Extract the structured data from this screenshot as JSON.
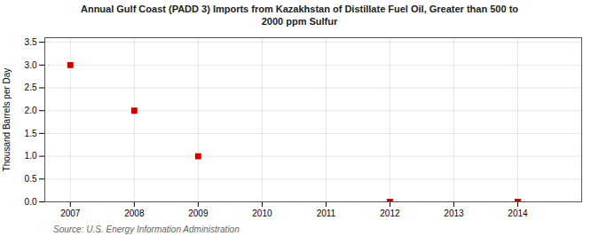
{
  "chart_data": {
    "type": "scatter",
    "title": "Annual Gulf Coast (PADD 3) Imports from Kazakhstan of Distillate Fuel Oil, Greater than 500 to\n2000 ppm Sulfur",
    "ylabel": "Thousand Barrels per Day",
    "source": "Source: U.S. Energy Information Administration",
    "x": [
      2007,
      2008,
      2009,
      2012,
      2014
    ],
    "values": [
      3.0,
      2.0,
      1.0,
      0.0,
      0.0
    ],
    "color": "#cc0000",
    "marker": "square",
    "xlim": [
      2006.6,
      2015.0
    ],
    "ylim": [
      0.0,
      3.6
    ],
    "xticks": [
      2007,
      2008,
      2009,
      2010,
      2011,
      2012,
      2013,
      2014
    ],
    "yticks": [
      {
        "value": 0.0,
        "label": "0.0"
      },
      0.5,
      {
        "value": 1.0,
        "label": "1.0"
      },
      1.5,
      {
        "value": 2.0,
        "label": "2.0"
      },
      2.5,
      {
        "value": 3.0,
        "label": "3.0"
      },
      3.5
    ],
    "grid": true
  }
}
